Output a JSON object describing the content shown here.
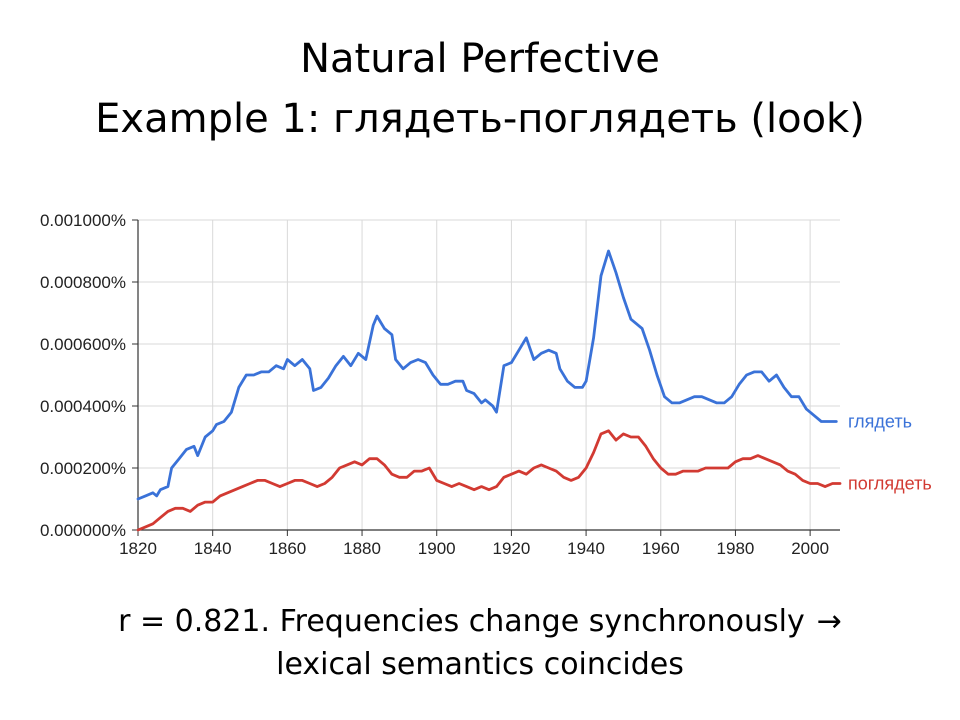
{
  "slide": {
    "title_line1": "Natural Perfective",
    "title_line2": "Example 1: глядеть-поглядеть (look)",
    "caption_line1": "r = 0.821. Frequencies change synchronously",
    "caption_arrow": "→",
    "caption_line2": "lexical semantics coincides"
  },
  "chart_data": {
    "type": "line",
    "title": "",
    "xlabel": "",
    "ylabel": "",
    "xlim": [
      1820,
      2008
    ],
    "ylim": [
      0,
      0.001
    ],
    "grid": true,
    "legend_placement": "right, at line ends",
    "x_ticks": [
      1820,
      1840,
      1860,
      1880,
      1900,
      1920,
      1940,
      1960,
      1980,
      2000
    ],
    "y_ticks": [
      {
        "value": 0.0,
        "label": "0.000000%"
      },
      {
        "value": 0.0002,
        "label": "0.000200%"
      },
      {
        "value": 0.0004,
        "label": "0.000400%"
      },
      {
        "value": 0.0006,
        "label": "0.000600%"
      },
      {
        "value": 0.0008,
        "label": "0.000800%"
      },
      {
        "value": 0.001,
        "label": "0.001000%"
      }
    ],
    "series": [
      {
        "name": "глядеть",
        "color": "#3a72d8",
        "points": [
          [
            1820,
            0.0001
          ],
          [
            1822,
            0.00011
          ],
          [
            1824,
            0.00012
          ],
          [
            1825,
            0.00011
          ],
          [
            1826,
            0.00013
          ],
          [
            1828,
            0.00014
          ],
          [
            1829,
            0.0002
          ],
          [
            1831,
            0.00023
          ],
          [
            1833,
            0.00026
          ],
          [
            1835,
            0.00027
          ],
          [
            1836,
            0.00024
          ],
          [
            1838,
            0.0003
          ],
          [
            1840,
            0.00032
          ],
          [
            1841,
            0.00034
          ],
          [
            1843,
            0.00035
          ],
          [
            1845,
            0.00038
          ],
          [
            1847,
            0.00046
          ],
          [
            1849,
            0.0005
          ],
          [
            1851,
            0.0005
          ],
          [
            1853,
            0.00051
          ],
          [
            1855,
            0.00051
          ],
          [
            1857,
            0.00053
          ],
          [
            1859,
            0.00052
          ],
          [
            1860,
            0.00055
          ],
          [
            1862,
            0.00053
          ],
          [
            1864,
            0.00055
          ],
          [
            1866,
            0.00052
          ],
          [
            1867,
            0.00045
          ],
          [
            1869,
            0.00046
          ],
          [
            1871,
            0.00049
          ],
          [
            1873,
            0.00053
          ],
          [
            1875,
            0.00056
          ],
          [
            1877,
            0.00053
          ],
          [
            1879,
            0.00057
          ],
          [
            1881,
            0.00055
          ],
          [
            1883,
            0.00066
          ],
          [
            1884,
            0.00069
          ],
          [
            1886,
            0.00065
          ],
          [
            1888,
            0.00063
          ],
          [
            1889,
            0.00055
          ],
          [
            1891,
            0.00052
          ],
          [
            1893,
            0.00054
          ],
          [
            1895,
            0.00055
          ],
          [
            1897,
            0.00054
          ],
          [
            1899,
            0.0005
          ],
          [
            1901,
            0.00047
          ],
          [
            1903,
            0.00047
          ],
          [
            1905,
            0.00048
          ],
          [
            1907,
            0.00048
          ],
          [
            1908,
            0.00045
          ],
          [
            1910,
            0.00044
          ],
          [
            1912,
            0.00041
          ],
          [
            1913,
            0.00042
          ],
          [
            1915,
            0.0004
          ],
          [
            1916,
            0.00038
          ],
          [
            1918,
            0.00053
          ],
          [
            1920,
            0.00054
          ],
          [
            1922,
            0.00058
          ],
          [
            1924,
            0.00062
          ],
          [
            1926,
            0.00055
          ],
          [
            1928,
            0.00057
          ],
          [
            1930,
            0.00058
          ],
          [
            1932,
            0.00057
          ],
          [
            1933,
            0.00052
          ],
          [
            1935,
            0.00048
          ],
          [
            1937,
            0.00046
          ],
          [
            1939,
            0.00046
          ],
          [
            1940,
            0.00048
          ],
          [
            1942,
            0.00062
          ],
          [
            1944,
            0.00082
          ],
          [
            1946,
            0.0009
          ],
          [
            1948,
            0.00083
          ],
          [
            1950,
            0.00075
          ],
          [
            1952,
            0.00068
          ],
          [
            1954,
            0.00066
          ],
          [
            1955,
            0.00065
          ],
          [
            1957,
            0.00058
          ],
          [
            1959,
            0.0005
          ],
          [
            1961,
            0.00043
          ],
          [
            1963,
            0.00041
          ],
          [
            1965,
            0.00041
          ],
          [
            1967,
            0.00042
          ],
          [
            1969,
            0.00043
          ],
          [
            1971,
            0.00043
          ],
          [
            1973,
            0.00042
          ],
          [
            1975,
            0.00041
          ],
          [
            1977,
            0.00041
          ],
          [
            1979,
            0.00043
          ],
          [
            1981,
            0.00047
          ],
          [
            1983,
            0.0005
          ],
          [
            1985,
            0.00051
          ],
          [
            1987,
            0.00051
          ],
          [
            1989,
            0.00048
          ],
          [
            1991,
            0.0005
          ],
          [
            1993,
            0.00046
          ],
          [
            1995,
            0.00043
          ],
          [
            1997,
            0.00043
          ],
          [
            1999,
            0.00039
          ],
          [
            2001,
            0.00037
          ],
          [
            2003,
            0.00035
          ],
          [
            2005,
            0.00035
          ],
          [
            2007,
            0.00035
          ]
        ]
      },
      {
        "name": "поглядеть",
        "color": "#d23a32",
        "points": [
          [
            1820,
            0.0
          ],
          [
            1822,
            1e-05
          ],
          [
            1824,
            2e-05
          ],
          [
            1826,
            4e-05
          ],
          [
            1828,
            6e-05
          ],
          [
            1830,
            7e-05
          ],
          [
            1832,
            7e-05
          ],
          [
            1834,
            6e-05
          ],
          [
            1836,
            8e-05
          ],
          [
            1838,
            9e-05
          ],
          [
            1840,
            9e-05
          ],
          [
            1842,
            0.00011
          ],
          [
            1844,
            0.00012
          ],
          [
            1846,
            0.00013
          ],
          [
            1848,
            0.00014
          ],
          [
            1850,
            0.00015
          ],
          [
            1852,
            0.00016
          ],
          [
            1854,
            0.00016
          ],
          [
            1856,
            0.00015
          ],
          [
            1858,
            0.00014
          ],
          [
            1860,
            0.00015
          ],
          [
            1862,
            0.00016
          ],
          [
            1864,
            0.00016
          ],
          [
            1866,
            0.00015
          ],
          [
            1868,
            0.00014
          ],
          [
            1870,
            0.00015
          ],
          [
            1872,
            0.00017
          ],
          [
            1874,
            0.0002
          ],
          [
            1876,
            0.00021
          ],
          [
            1878,
            0.00022
          ],
          [
            1880,
            0.00021
          ],
          [
            1882,
            0.00023
          ],
          [
            1884,
            0.00023
          ],
          [
            1886,
            0.00021
          ],
          [
            1888,
            0.00018
          ],
          [
            1890,
            0.00017
          ],
          [
            1892,
            0.00017
          ],
          [
            1894,
            0.00019
          ],
          [
            1896,
            0.00019
          ],
          [
            1898,
            0.0002
          ],
          [
            1900,
            0.00016
          ],
          [
            1902,
            0.00015
          ],
          [
            1904,
            0.00014
          ],
          [
            1906,
            0.00015
          ],
          [
            1908,
            0.00014
          ],
          [
            1910,
            0.00013
          ],
          [
            1912,
            0.00014
          ],
          [
            1914,
            0.00013
          ],
          [
            1916,
            0.00014
          ],
          [
            1918,
            0.00017
          ],
          [
            1920,
            0.00018
          ],
          [
            1922,
            0.00019
          ],
          [
            1924,
            0.00018
          ],
          [
            1926,
            0.0002
          ],
          [
            1928,
            0.00021
          ],
          [
            1930,
            0.0002
          ],
          [
            1932,
            0.00019
          ],
          [
            1934,
            0.00017
          ],
          [
            1936,
            0.00016
          ],
          [
            1938,
            0.00017
          ],
          [
            1940,
            0.0002
          ],
          [
            1942,
            0.00025
          ],
          [
            1944,
            0.00031
          ],
          [
            1946,
            0.00032
          ],
          [
            1948,
            0.00029
          ],
          [
            1950,
            0.00031
          ],
          [
            1952,
            0.0003
          ],
          [
            1954,
            0.0003
          ],
          [
            1956,
            0.00027
          ],
          [
            1958,
            0.00023
          ],
          [
            1960,
            0.0002
          ],
          [
            1962,
            0.00018
          ],
          [
            1964,
            0.00018
          ],
          [
            1966,
            0.00019
          ],
          [
            1968,
            0.00019
          ],
          [
            1970,
            0.00019
          ],
          [
            1972,
            0.0002
          ],
          [
            1974,
            0.0002
          ],
          [
            1976,
            0.0002
          ],
          [
            1978,
            0.0002
          ],
          [
            1980,
            0.00022
          ],
          [
            1982,
            0.00023
          ],
          [
            1984,
            0.00023
          ],
          [
            1986,
            0.00024
          ],
          [
            1988,
            0.00023
          ],
          [
            1990,
            0.00022
          ],
          [
            1992,
            0.00021
          ],
          [
            1994,
            0.00019
          ],
          [
            1996,
            0.00018
          ],
          [
            1998,
            0.00016
          ],
          [
            2000,
            0.00015
          ],
          [
            2002,
            0.00015
          ],
          [
            2004,
            0.00014
          ],
          [
            2006,
            0.00015
          ],
          [
            2008,
            0.00015
          ]
        ]
      }
    ]
  }
}
